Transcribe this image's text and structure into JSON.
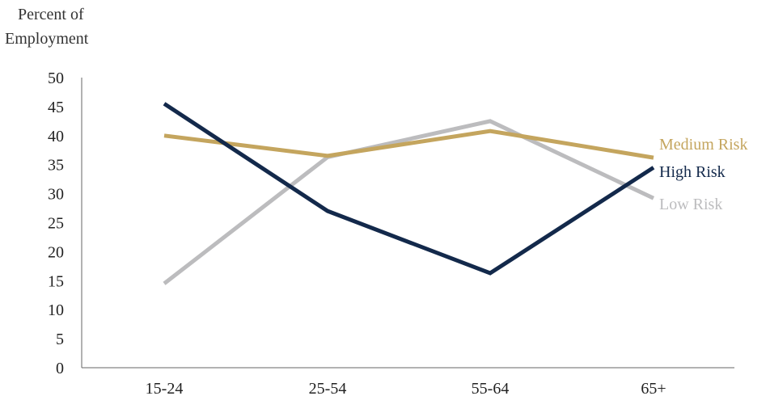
{
  "chart_data": {
    "type": "line",
    "ylabel_lines": [
      "Percent of",
      "Employment"
    ],
    "xlabel": "",
    "categories": [
      "15-24",
      "25-54",
      "55-64",
      "65+"
    ],
    "ylim": [
      0,
      50
    ],
    "yticks": [
      0,
      5,
      10,
      15,
      20,
      25,
      30,
      35,
      40,
      45,
      50
    ],
    "grid": false,
    "legend": "inline labels at right end of lines",
    "series": [
      {
        "name": "Medium Risk",
        "color": "#C4A55E",
        "values": [
          40.0,
          36.5,
          40.8,
          36.2
        ]
      },
      {
        "name": "High Risk",
        "color": "#13294B",
        "values": [
          45.5,
          27.0,
          16.3,
          34.5
        ]
      },
      {
        "name": "Low Risk",
        "color": "#BCBCBE",
        "values": [
          14.5,
          36.3,
          42.5,
          29.2
        ]
      }
    ]
  }
}
